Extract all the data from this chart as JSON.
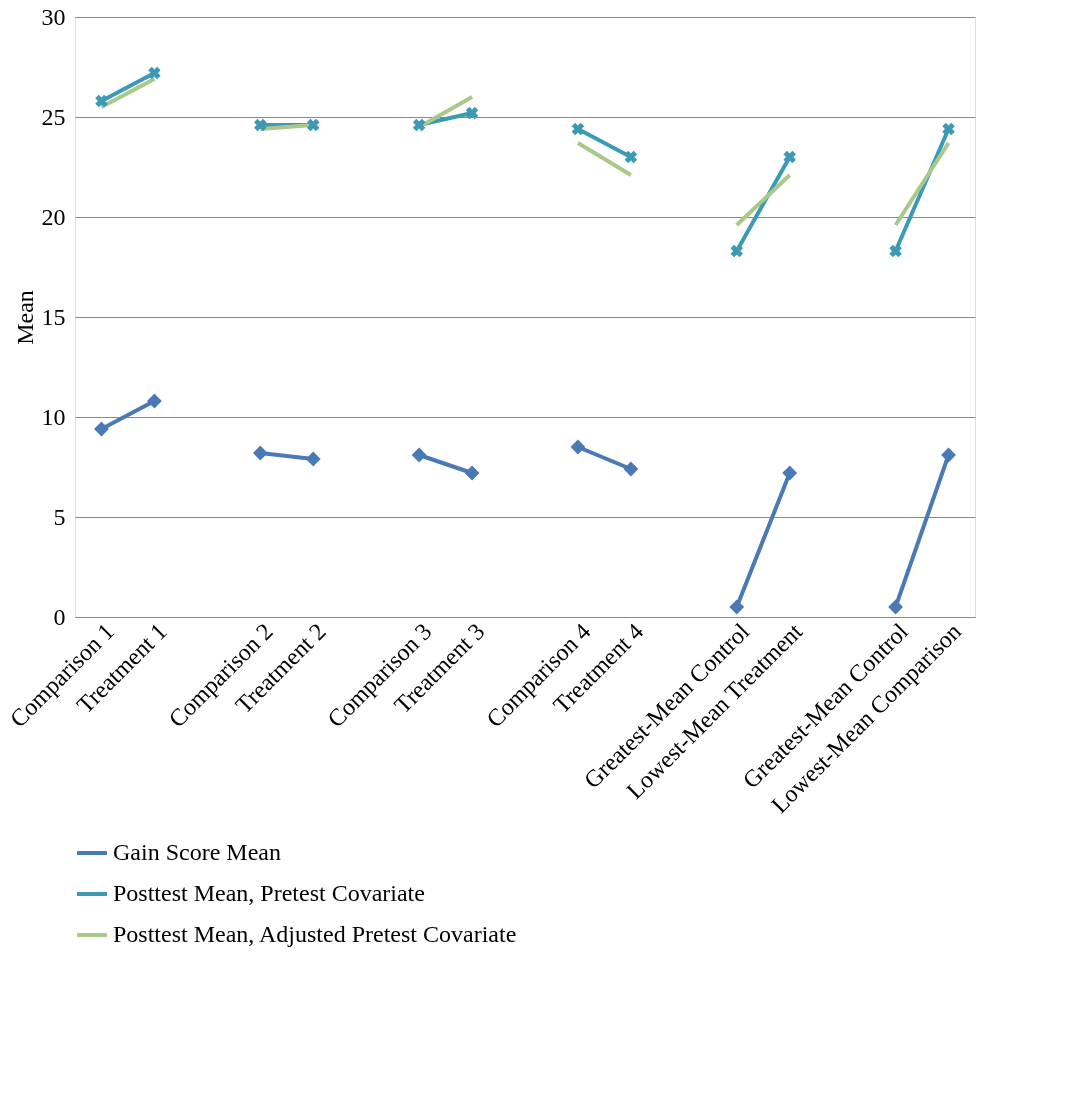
{
  "chart_data": {
    "type": "line",
    "ylabel": "Mean",
    "categories": [
      "Comparison 1",
      "Treatment 1",
      null,
      "Comparison 2",
      "Treatment 2",
      null,
      "Comparison 3",
      "Treatment 3",
      null,
      "Comparison 4",
      "Treatment 4",
      null,
      "Greatest-Mean Control",
      "Lowest-Mean Treatment",
      null,
      "Greatest-Mean Control",
      "Lowest-Mean Comparison"
    ],
    "series": [
      {
        "name": "Gain Score Mean",
        "color": "#4a7ab5",
        "marker": "diamond",
        "values": [
          9.4,
          10.8,
          null,
          8.2,
          7.9,
          null,
          8.1,
          7.2,
          null,
          8.5,
          7.4,
          null,
          0.5,
          7.2,
          null,
          0.5,
          8.1
        ]
      },
      {
        "name": "Posttest Mean, Pretest Covariate",
        "color": "#3c9ab5",
        "marker": "cross",
        "values": [
          25.8,
          27.2,
          null,
          24.6,
          24.6,
          null,
          24.6,
          25.2,
          null,
          24.4,
          23.0,
          null,
          18.3,
          23.0,
          null,
          18.3,
          24.4
        ]
      },
      {
        "name": "Posttest Mean, Adjusted Pretest Covariate",
        "color": "#a9c98a",
        "marker": "none",
        "values": [
          25.5,
          26.9,
          null,
          24.4,
          24.6,
          null,
          24.5,
          26.0,
          null,
          23.7,
          22.1,
          null,
          19.6,
          22.1,
          null,
          19.6,
          23.7
        ]
      }
    ],
    "ylim": [
      0,
      30
    ],
    "yticks": [
      0,
      5,
      10,
      15,
      20,
      25,
      30
    ],
    "grid": "y",
    "legend": "bottom"
  }
}
